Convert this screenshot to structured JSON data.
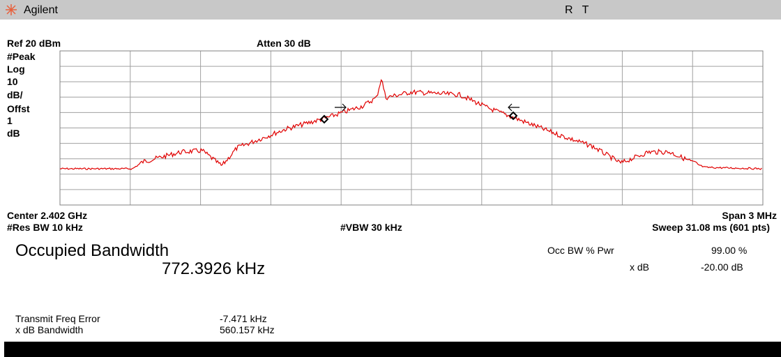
{
  "header": {
    "brand": "Agilent",
    "status": "R   T"
  },
  "settings": {
    "ref": "Ref 20 dBm",
    "atten": "Atten 30 dB",
    "scale": [
      "#Peak",
      "Log",
      "10",
      "dB/",
      "Offst",
      "1",
      "dB"
    ],
    "center": "Center 2.402 GHz",
    "span": "Span 3 MHz",
    "res_bw": "#Res BW 10 kHz",
    "vbw": "#VBW 30 kHz",
    "sweep": "Sweep 31.08 ms (601 pts)"
  },
  "measurement": {
    "title": "Occupied Bandwidth",
    "value": "772.3926 kHz",
    "params": [
      [
        "Occ BW % Pwr",
        "99.00 %"
      ],
      [
        "x dB",
        "-20.00 dB"
      ]
    ],
    "results": [
      [
        "Transmit Freq Error",
        "-7.471 kHz"
      ],
      [
        "x dB Bandwidth",
        "560.157 kHz"
      ]
    ]
  }
}
